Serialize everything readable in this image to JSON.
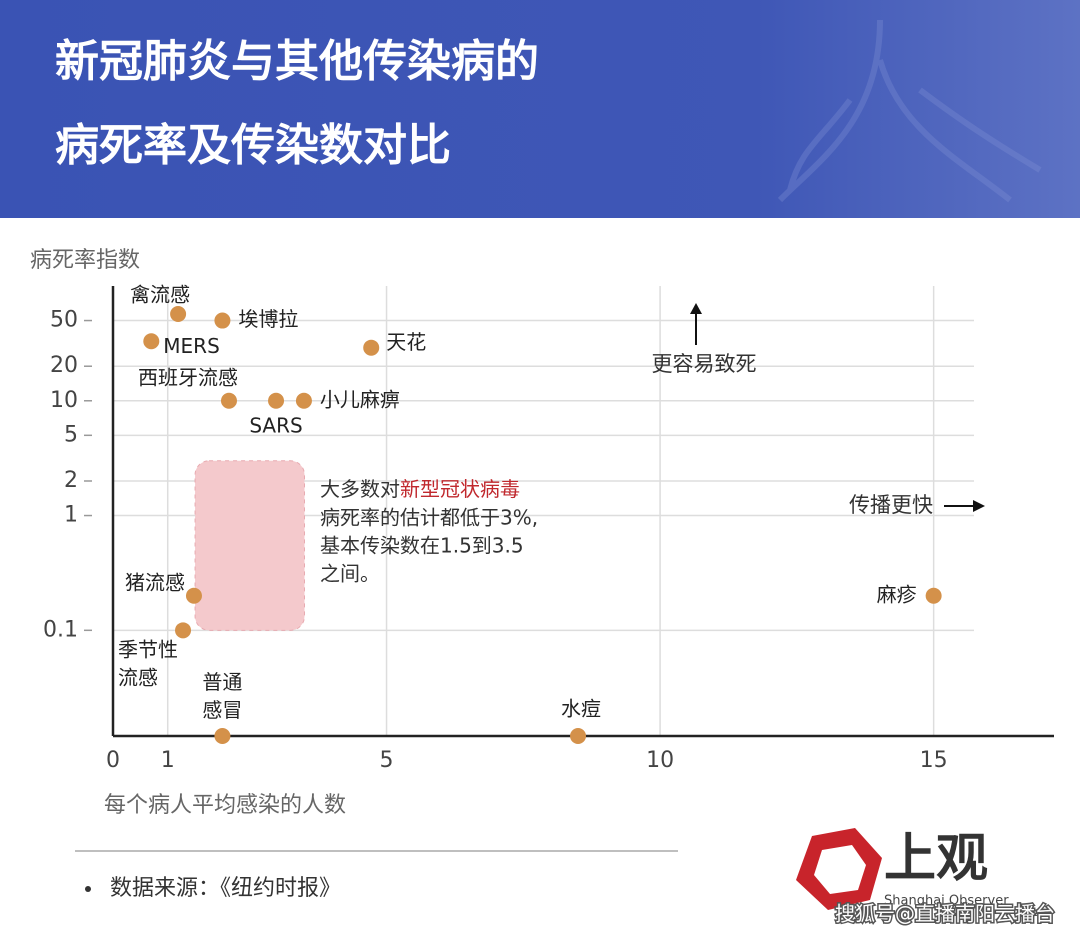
{
  "header": {
    "title_lines": [
      "新冠肺炎与其他传染病的",
      "病死率及传染数对比"
    ]
  },
  "chart_data": {
    "type": "scatter",
    "y_label": "病死率指数",
    "x_label": "每个病人平均感染的人数",
    "xlim": [
      0,
      17.2
    ],
    "xticks": [
      0,
      1,
      5,
      10,
      15
    ],
    "ylim": [
      0.012,
      100
    ],
    "yticks": [
      0.1,
      1,
      2,
      5,
      10,
      20,
      50
    ],
    "log_y": true,
    "grid": true,
    "series": [
      {
        "color": "#d4914a",
        "labels": [
          "禽流感",
          "埃博拉",
          "MERS",
          "天花",
          "西班牙流感",
          "SARS",
          "小儿麻痹",
          "猪流感",
          "季节性\n流感",
          "普通\n感冒",
          "水痘",
          "麻疹"
        ],
        "x": [
          1.19,
          2.0,
          0.7,
          4.72,
          2.12,
          2.98,
          3.49,
          1.48,
          1.28,
          2.0,
          8.5,
          15.0
        ],
        "values": [
          57,
          50,
          33,
          29,
          10,
          10,
          10,
          0.2,
          0.1,
          0.012,
          0.012,
          0.2
        ]
      }
    ],
    "region": {
      "xlim": [
        1.5,
        3.5
      ],
      "ylim": [
        0.1,
        3
      ],
      "color": "#f4c9cc"
    },
    "annotation": {
      "before": "大多数对",
      "highlight": "新型冠状病毒",
      "after_lines": [
        "病死率的估计都低于3%,",
        "基本传染数在1.5到3.5",
        "之间。"
      ],
      "highlight_color": "#c0282d"
    },
    "arrow_up_label": "更容易致死",
    "arrow_right_label": "传播更快"
  },
  "source": "数据来源：《纽约时报》",
  "logo": {
    "name": "上观",
    "sub": "Shanghai Observer"
  },
  "watermark": "搜狐号@直播南阳云播台"
}
